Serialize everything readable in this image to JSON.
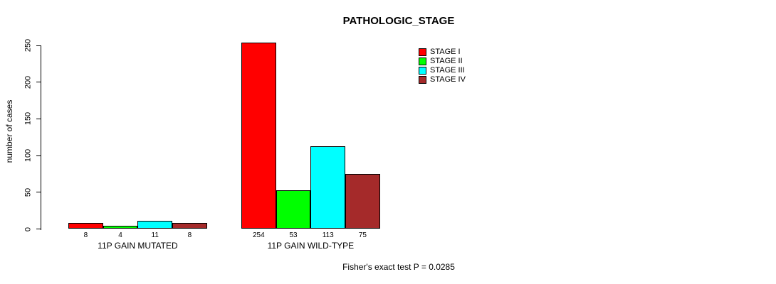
{
  "chart_data": {
    "type": "bar",
    "title": "PATHOLOGIC_STAGE",
    "ylabel": "number of cases",
    "xlabel": "",
    "ylim": [
      0,
      250
    ],
    "yticks": [
      0,
      50,
      100,
      150,
      200,
      250
    ],
    "grid": false,
    "legend_position": "top-right",
    "bar_labels_shown": true,
    "categories": [
      "11P GAIN MUTATED",
      "11P GAIN WILD-TYPE"
    ],
    "series": [
      {
        "name": "STAGE I",
        "color": "#FF0000",
        "values": [
          8,
          254
        ]
      },
      {
        "name": "STAGE II",
        "color": "#00FF00",
        "values": [
          4,
          53
        ]
      },
      {
        "name": "STAGE III",
        "color": "#00FFFF",
        "values": [
          11,
          113
        ]
      },
      {
        "name": "STAGE IV",
        "color": "#A52A2A",
        "values": [
          8,
          75
        ]
      }
    ],
    "annotation": "Fisher's exact test P = 0.0285"
  }
}
